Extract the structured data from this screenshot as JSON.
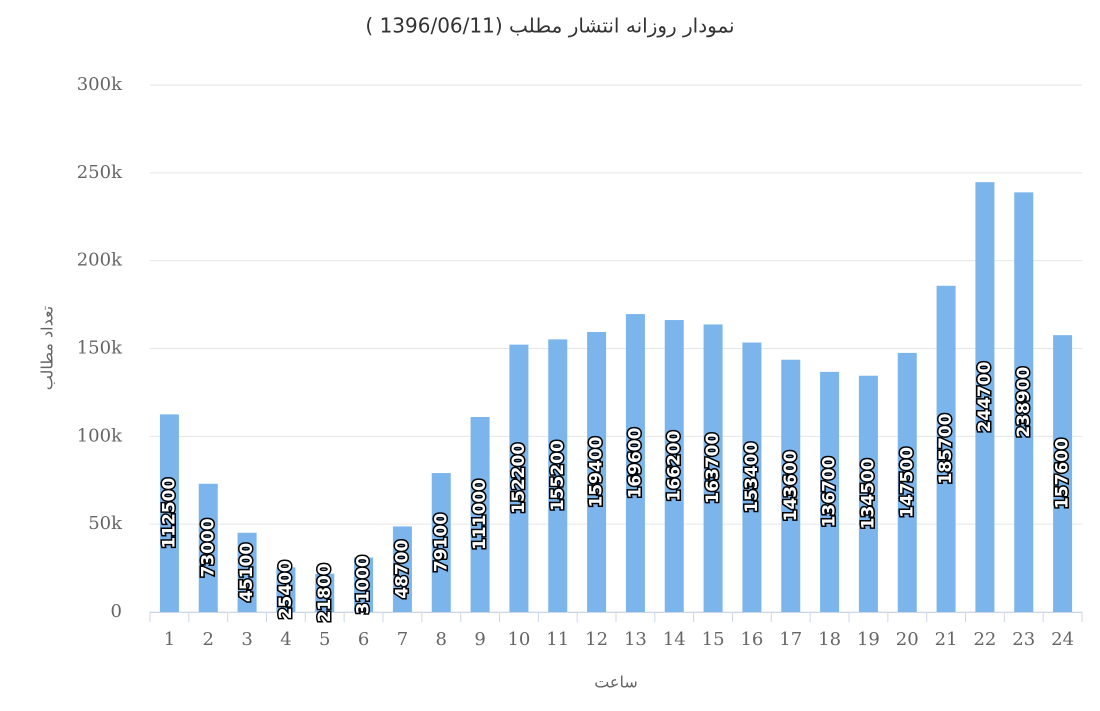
{
  "chart_data": {
    "type": "bar",
    "title": "نمودار روزانه انتشار مطلب (1396/06/11 )",
    "x_label": "ساعت",
    "y_label": "تعداد مطالب",
    "categories": [
      "1",
      "2",
      "3",
      "4",
      "5",
      "6",
      "7",
      "8",
      "9",
      "10",
      "11",
      "12",
      "13",
      "14",
      "15",
      "16",
      "17",
      "18",
      "19",
      "20",
      "21",
      "22",
      "23",
      "24"
    ],
    "values": [
      112500,
      73000,
      45100,
      25400,
      21800,
      31000,
      48700,
      79100,
      111000,
      152200,
      155200,
      159400,
      169600,
      166200,
      163700,
      153400,
      143600,
      136700,
      134500,
      147500,
      185700,
      244700,
      238900,
      157600
    ],
    "color": "#7cb5ec",
    "ylim": [
      0,
      300000
    ],
    "yticks": [
      0,
      {
        "value": 50000,
        "label": "50k"
      },
      {
        "value": 100000,
        "label": "100k"
      },
      {
        "value": 150000,
        "label": "150k"
      },
      {
        "value": 200000,
        "label": "200k"
      },
      {
        "value": 250000,
        "label": "250k"
      },
      {
        "value": 300000,
        "label": "300k"
      }
    ],
    "grid": true
  }
}
